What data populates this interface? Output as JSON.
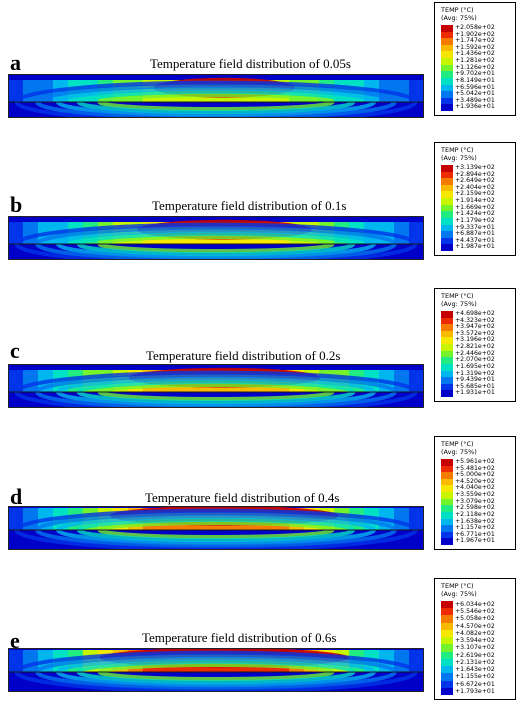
{
  "legend_colors": [
    "#c40000",
    "#ee2a00",
    "#f57a00",
    "#f9ba00",
    "#f6e700",
    "#c7f500",
    "#72f32c",
    "#21ec82",
    "#00e0c4",
    "#00b6ef",
    "#0076ef",
    "#0034e8",
    "#0000c8"
  ],
  "panels": [
    {
      "letter": "a",
      "title": "Temperature field distribution of 0.05s",
      "legend_title": "TEMP (°C)",
      "legend_subtitle": "(Avg: 75%)",
      "legend_values": [
        "+2.058e+02",
        "+1.902e+02",
        "+1.747e+02",
        "+1.592e+02",
        "+1.436e+02",
        "+1.281e+02",
        "+1.126e+02",
        "+9.702e+01",
        "+8.149e+01",
        "+6.596e+01",
        "+5.042e+01",
        "+3.489e+01",
        "+1.936e+01"
      ]
    },
    {
      "letter": "b",
      "title": "Temperature field distribution of 0.1s",
      "legend_title": "TEMP (°C)",
      "legend_subtitle": "(Avg: 75%)",
      "legend_values": [
        "+3.139e+02",
        "+2.894e+02",
        "+2.649e+02",
        "+2.404e+02",
        "+2.159e+02",
        "+1.914e+02",
        "+1.669e+02",
        "+1.424e+02",
        "+1.179e+02",
        "+9.337e+01",
        "+6.887e+01",
        "+4.437e+01",
        "+1.987e+01"
      ]
    },
    {
      "letter": "c",
      "title": "Temperature field distribution of 0.2s",
      "legend_title": "TEMP (°C)",
      "legend_subtitle": "(Avg: 75%)",
      "legend_values": [
        "+4.698e+02",
        "+4.323e+02",
        "+3.947e+02",
        "+3.572e+02",
        "+3.196e+02",
        "+2.821e+02",
        "+2.446e+02",
        "+2.070e+02",
        "+1.695e+02",
        "+1.319e+02",
        "+9.439e+01",
        "+5.685e+01",
        "+1.931e+01"
      ]
    },
    {
      "letter": "d",
      "title": "Temperature field distribution of 0.4s",
      "legend_title": "TEMP (°C)",
      "legend_subtitle": "(Avg: 75%)",
      "legend_values": [
        "+5.961e+02",
        "+5.481e+02",
        "+5.000e+02",
        "+4.520e+02",
        "+4.040e+02",
        "+3.559e+02",
        "+3.079e+02",
        "+2.598e+02",
        "+2.118e+02",
        "+1.638e+02",
        "+1.157e+02",
        "+6.771e+01",
        "+1.967e+01"
      ]
    },
    {
      "letter": "e",
      "title": "Temperature field distribution of 0.6s",
      "legend_title": "TEMP (°C)",
      "legend_subtitle": "(Avg: 75%)",
      "legend_values": [
        "+6.034e+02",
        "+5.546e+02",
        "+5.058e+02",
        "+4.570e+02",
        "+4.082e+02",
        "+3.594e+02",
        "+3.107e+02",
        "+2.619e+02",
        "+2.131e+02",
        "+1.643e+02",
        "+1.155e+02",
        "+6.672e+01",
        "+1.793e+01"
      ]
    }
  ]
}
